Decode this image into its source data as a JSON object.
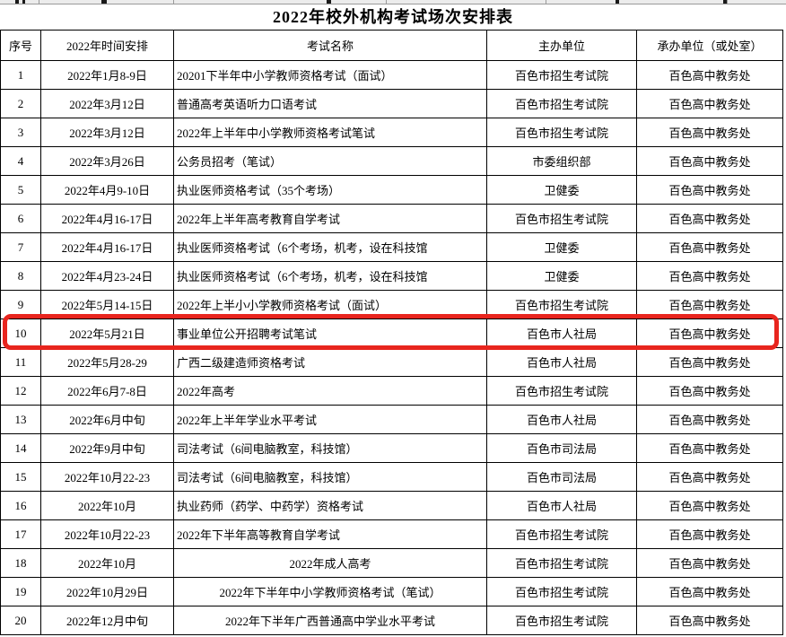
{
  "page_title": "2022年校外机构考试场次安排表",
  "table": {
    "columns": [
      "序号",
      "2022年时间安排",
      "考试名称",
      "主办单位",
      "承办单位（或处室）"
    ],
    "rows": [
      {
        "no": "1",
        "time": "2022年1月8-9日",
        "exam": "20201下半年中小学教师资格考试（面试）",
        "exam_align": "left",
        "host": "百色市招生考试院",
        "undertaker": "百色高中教务处"
      },
      {
        "no": "2",
        "time": "2022年3月12日",
        "exam": "普通高考英语听力口语考试",
        "exam_align": "left",
        "host": "百色市招生考试院",
        "undertaker": "百色高中教务处"
      },
      {
        "no": "3",
        "time": "2022年3月12日",
        "exam": "2022年上半年中小学教师资格考试笔试",
        "exam_align": "left",
        "host": "百色市招生考试院",
        "undertaker": "百色高中教务处"
      },
      {
        "no": "4",
        "time": "2022年3月26日",
        "exam": "公务员招考（笔试）",
        "exam_align": "left",
        "host": "市委组织部",
        "undertaker": "百色高中教务处"
      },
      {
        "no": "5",
        "time": "2022年4月9-10日",
        "exam": "执业医师资格考试（35个考场）",
        "exam_align": "left",
        "host": "卫健委",
        "undertaker": "百色高中教务处"
      },
      {
        "no": "6",
        "time": "2022年4月16-17日",
        "exam": "2022年上半年高考教育自学考试",
        "exam_align": "left",
        "host": "百色市招生考试院",
        "undertaker": "百色高中教务处"
      },
      {
        "no": "7",
        "time": "2022年4月16-17日",
        "exam": "执业医师资格考试（6个考场，机考，设在科技馆",
        "exam_align": "left",
        "host": "卫健委",
        "undertaker": "百色高中教务处"
      },
      {
        "no": "8",
        "time": "2022年4月23-24日",
        "exam": "执业医师资格考试（6个考场，机考，设在科技馆",
        "exam_align": "left",
        "host": "卫健委",
        "undertaker": "百色高中教务处"
      },
      {
        "no": "9",
        "time": "2022年5月14-15日",
        "exam": "2022年上半小小学教师资格考试（面试）",
        "exam_align": "left",
        "host": "百色市招生考试院",
        "undertaker": "百色高中教务处"
      },
      {
        "no": "10",
        "time": "2022年5月21日",
        "exam": "事业单位公开招聘考试笔试",
        "exam_align": "left",
        "host": "百色市人社局",
        "undertaker": "百色高中教务处"
      },
      {
        "no": "11",
        "time": "2022年5月28-29",
        "exam": "广西二级建造师资格考试",
        "exam_align": "left",
        "host": "百色市人社局",
        "undertaker": "百色高中教务处"
      },
      {
        "no": "12",
        "time": "2022年6月7-8日",
        "exam": "2022年高考",
        "exam_align": "left",
        "host": "百色市招生考试院",
        "undertaker": "百色高中教务处"
      },
      {
        "no": "13",
        "time": "2022年6月中旬",
        "exam": "2022年上半年学业水平考试",
        "exam_align": "left",
        "host": "百色市人社局",
        "undertaker": "百色高中教务处"
      },
      {
        "no": "14",
        "time": "2022年9月中旬",
        "exam": "司法考试（6间电脑教室，科技馆）",
        "exam_align": "left",
        "host": "百色市司法局",
        "undertaker": "百色高中教务处"
      },
      {
        "no": "15",
        "time": "2022年10月22-23",
        "exam": "司法考试（6间电脑教室，科技馆）",
        "exam_align": "left",
        "host": "百色市司法局",
        "undertaker": "百色高中教务处"
      },
      {
        "no": "16",
        "time": "2022年10月",
        "exam": "执业药师（药学、中药学）资格考试",
        "exam_align": "left",
        "host": "百色市人社局",
        "undertaker": "百色高中教务处"
      },
      {
        "no": "17",
        "time": "2022年10月22-23",
        "exam": "2022年下半年高等教育自学考试",
        "exam_align": "left",
        "host": "百色市招生考试院",
        "undertaker": "百色高中教务处"
      },
      {
        "no": "18",
        "time": "2022年10月",
        "exam": "2022年成人高考",
        "exam_align": "center",
        "host": "百色市招生考试院",
        "undertaker": "百色高中教务处"
      },
      {
        "no": "19",
        "time": "2022年10月29日",
        "exam": "2022年下半年中小学教师资格考试（笔试）",
        "exam_align": "center",
        "host": "百色市招生考试院",
        "undertaker": "百色高中教务处"
      },
      {
        "no": "20",
        "time": "2022年12月中旬",
        "exam": "2022年下半年广西普通高中学业水平考试",
        "exam_align": "center",
        "host": "百色市招生考试院",
        "undertaker": "百色高中教务处"
      }
    ],
    "highlight": {
      "row_no": "10",
      "color": "#e8251e"
    }
  }
}
